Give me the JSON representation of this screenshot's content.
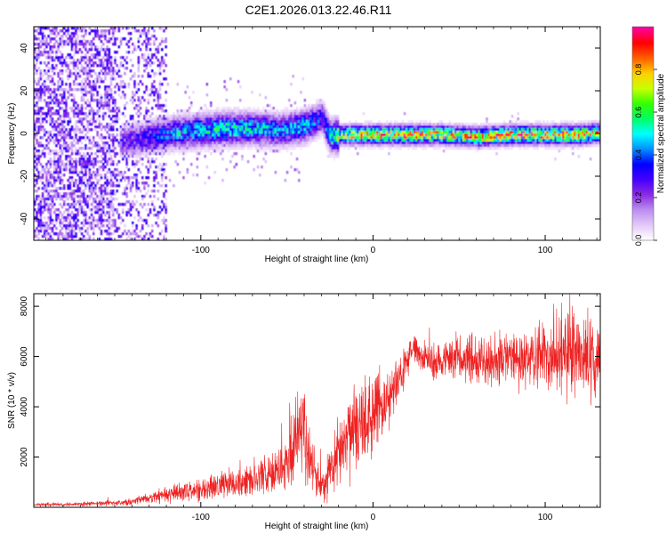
{
  "title": "C2E1.2026.013.22.46.R11",
  "colors": {
    "snr_line": "#ee2222",
    "frame": "#000000",
    "background": "#ffffff"
  },
  "chart_data": [
    {
      "type": "heatmap",
      "name": "spectrogram",
      "xlabel": "Height of straight line (km)",
      "ylabel": "Frequency (Hz)",
      "xlim": [
        -197,
        132
      ],
      "ylim": [
        -50,
        50
      ],
      "xticks": [
        -100,
        0,
        100
      ],
      "yticks": [
        -40,
        -20,
        0,
        20,
        40
      ],
      "colorbar": {
        "label": "Normalized spectral amplitude",
        "range": [
          0,
          1
        ],
        "ticks": [
          "0.0",
          "0.2",
          "0.4",
          "0.6",
          "0.8"
        ],
        "colormap": [
          "#ffffff",
          "#e4c8f8",
          "#b98cf0",
          "#8a2be2",
          "#4400ff",
          "#0000ff",
          "#0090ff",
          "#00ffff",
          "#00ff66",
          "#33ff00",
          "#c8ff00",
          "#ffd000",
          "#ff6000",
          "#ff0000",
          "#ff0099"
        ]
      },
      "ridge": {
        "x": [
          -145,
          -130,
          -115,
          -100,
          -85,
          -70,
          -55,
          -40,
          -30,
          -25,
          -20,
          0,
          20,
          40,
          60,
          80,
          100,
          120,
          132
        ],
        "y": [
          -3,
          -1,
          1,
          2,
          3,
          3,
          2,
          4,
          8,
          -1,
          0,
          0,
          0,
          0,
          -1,
          0,
          0,
          0,
          1
        ],
        "amplitude": [
          0.25,
          0.35,
          0.45,
          0.5,
          0.55,
          0.5,
          0.45,
          0.5,
          0.35,
          0.55,
          0.7,
          0.85,
          0.85,
          0.8,
          0.8,
          0.85,
          0.85,
          0.85,
          0.8
        ]
      }
    },
    {
      "type": "line",
      "name": "snr",
      "xlabel": "Height of straight line (km)",
      "ylabel": "SNR (10 * v/v)",
      "xlim": [
        -197,
        132
      ],
      "ylim": [
        0,
        8500
      ],
      "xticks": [
        -100,
        0,
        100
      ],
      "yticks": [
        2000,
        4000,
        6000,
        8000
      ],
      "series": [
        {
          "name": "SNR",
          "x": [
            -197,
            -180,
            -160,
            -150,
            -140,
            -130,
            -120,
            -110,
            -100,
            -90,
            -80,
            -70,
            -60,
            -50,
            -45,
            -42,
            -40,
            -37,
            -33,
            -28,
            -25,
            -22,
            -20,
            -15,
            -10,
            -5,
            0,
            5,
            10,
            15,
            18,
            20,
            22,
            25,
            28,
            30,
            40,
            60,
            80,
            100,
            110,
            120,
            132
          ],
          "y": [
            100,
            120,
            150,
            180,
            250,
            350,
            500,
            600,
            700,
            800,
            1000,
            1100,
            1300,
            1800,
            2500,
            3000,
            2800,
            2000,
            1200,
            900,
            1500,
            2000,
            2300,
            2800,
            3200,
            3500,
            3700,
            4000,
            4400,
            5000,
            5500,
            5900,
            6100,
            6200,
            6000,
            5900,
            5800,
            5900,
            5900,
            6000,
            6200,
            6100,
            6100
          ],
          "noise_amplitude": [
            60,
            60,
            80,
            90,
            120,
            180,
            300,
            350,
            400,
            450,
            550,
            600,
            700,
            900,
            1500,
            1600,
            1400,
            1100,
            700,
            600,
            900,
            1100,
            1200,
            1400,
            1500,
            1400,
            1300,
            1200,
            1100,
            900,
            700,
            600,
            500,
            500,
            500,
            600,
            700,
            800,
            900,
            1200,
            1500,
            1400,
            1300
          ]
        }
      ]
    }
  ]
}
